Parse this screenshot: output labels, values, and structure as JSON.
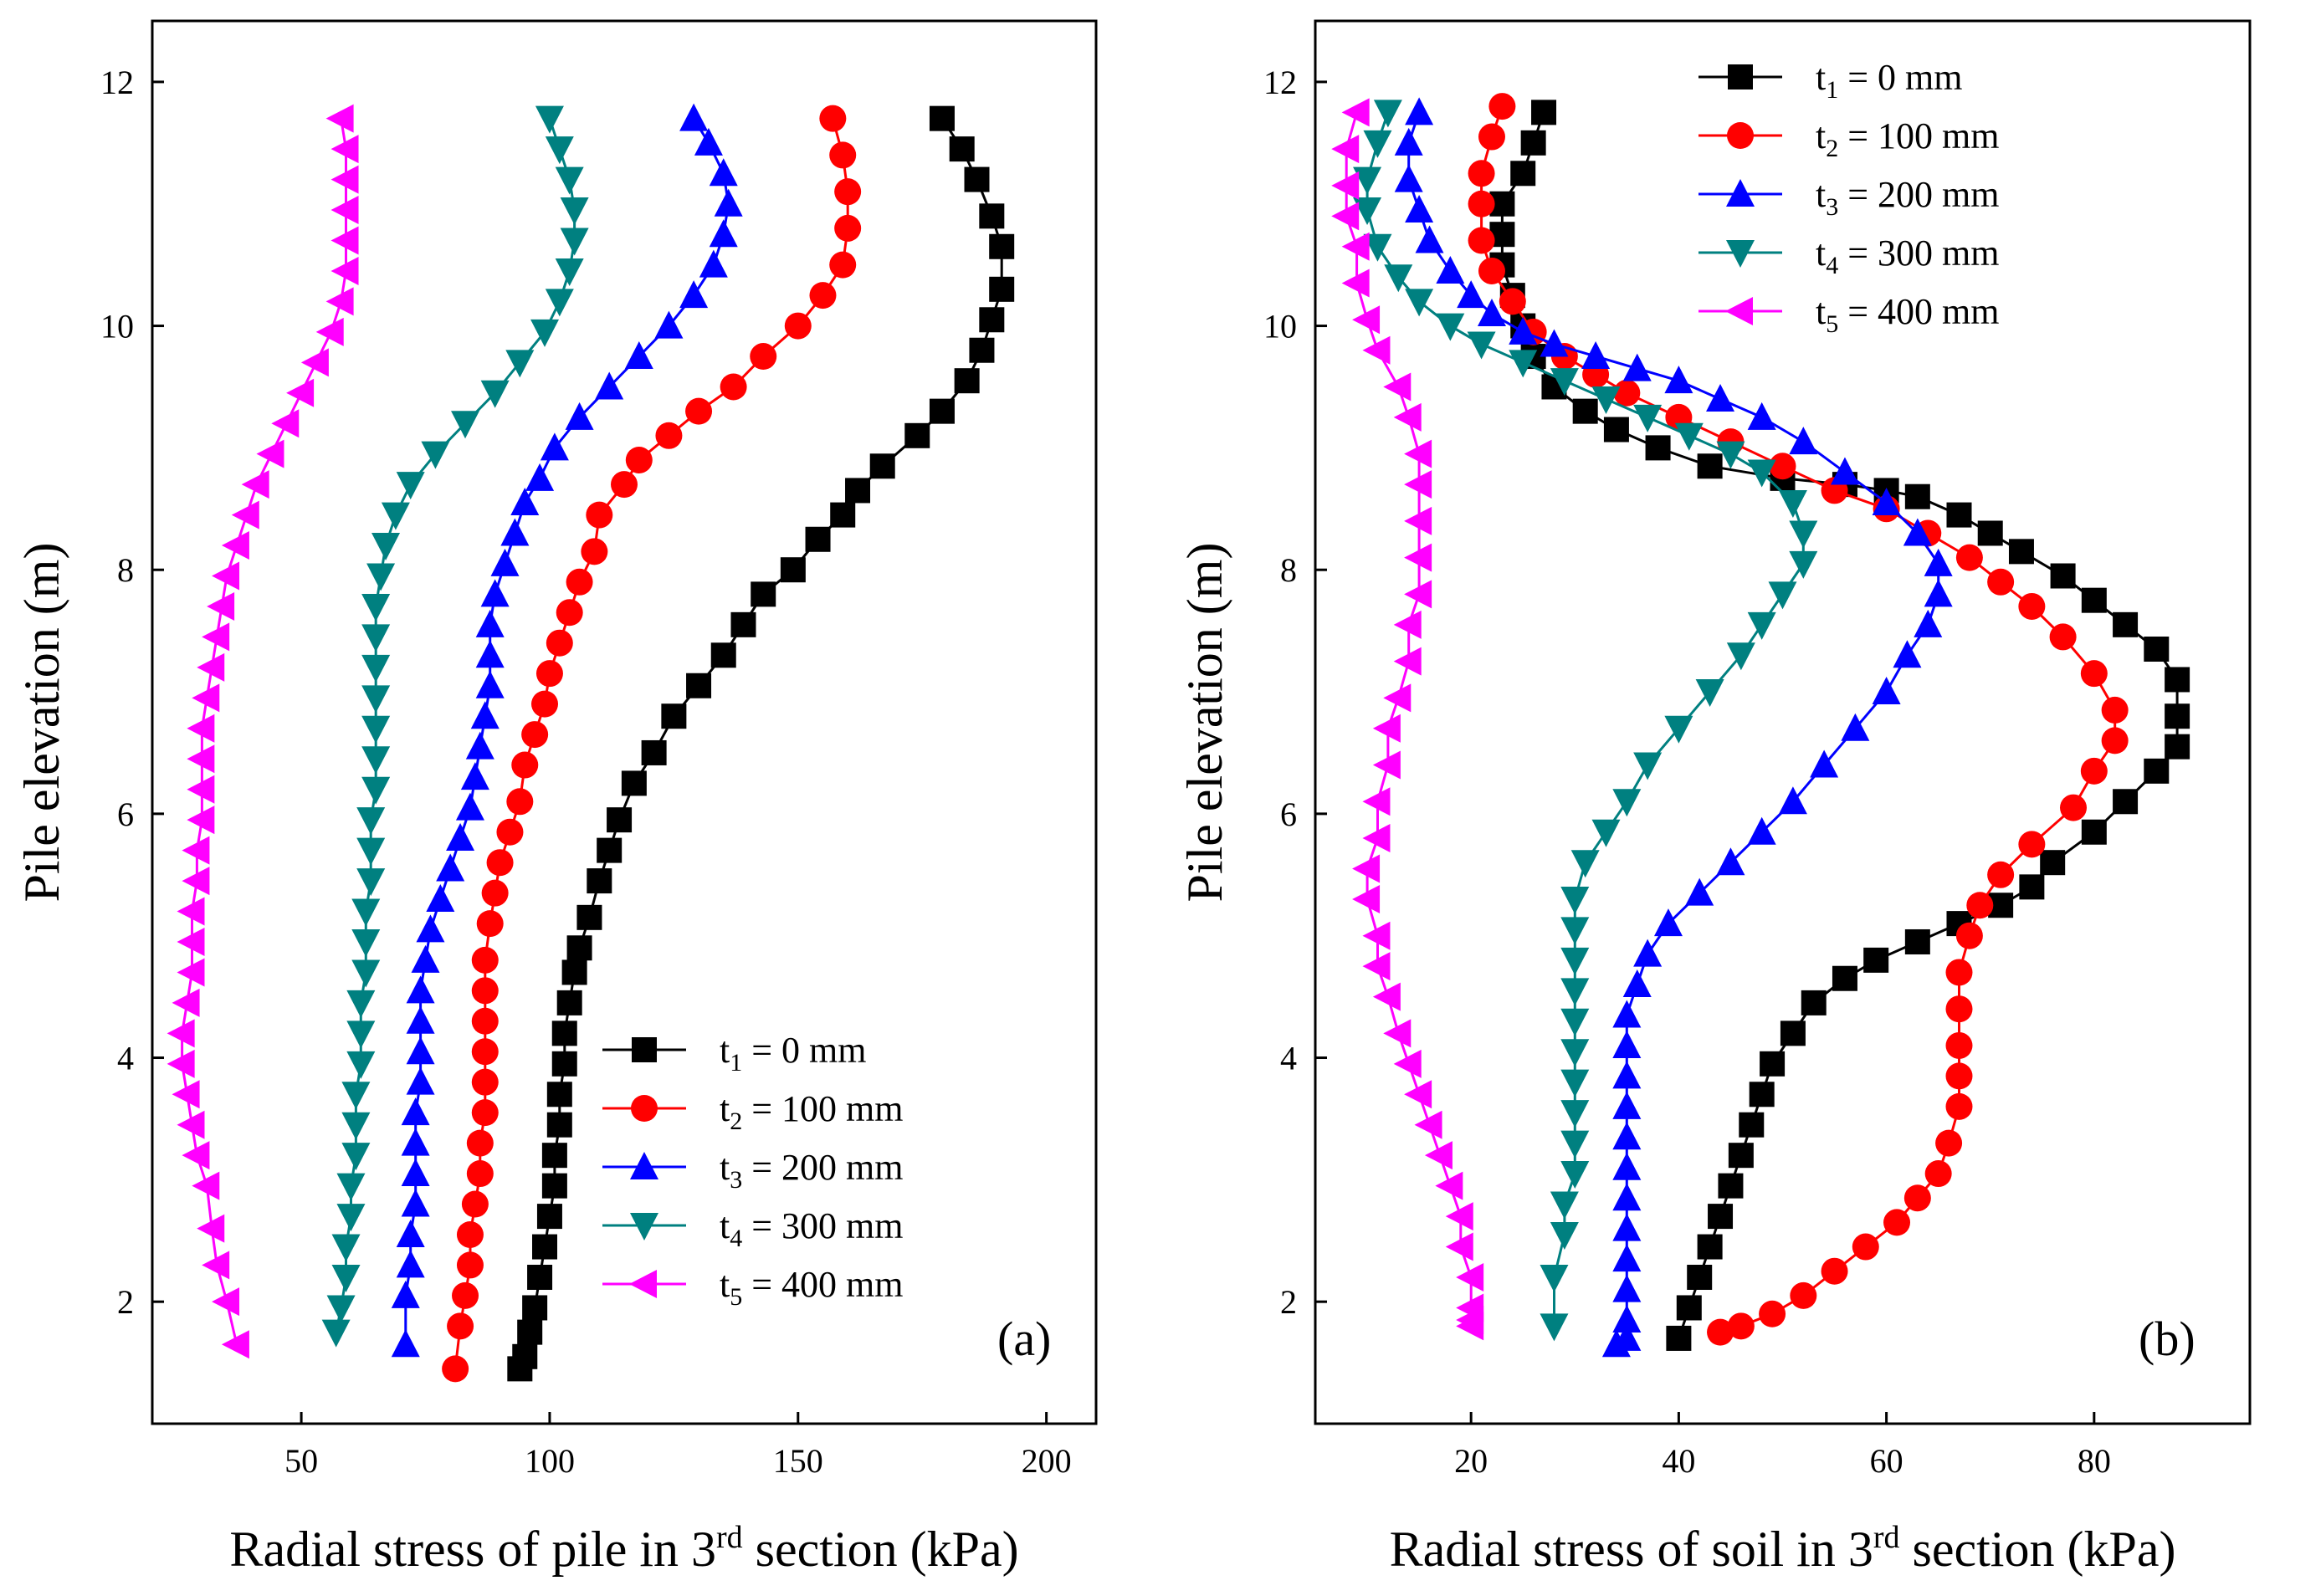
{
  "chart_data": [
    {
      "id": "a",
      "type": "line",
      "panel_label": "(a)",
      "xlabel_pre": "Radial stress of pile in 3",
      "xlabel_sup": "rd",
      "xlabel_post": " section (kPa)",
      "ylabel": "Pile elevation (m)",
      "xlim": [
        20,
        210
      ],
      "ylim": [
        1,
        12.5
      ],
      "xticks": [
        50,
        100,
        150,
        200
      ],
      "yticks": [
        2,
        4,
        6,
        8,
        10,
        12
      ],
      "legend_position": "bottom-right",
      "series": [
        {
          "name": "t1 = 0 mm",
          "sub": "1",
          "label_rest": " = 0 mm",
          "color": "#000000",
          "marker": "square",
          "x": [
            179,
            183,
            186,
            189,
            191,
            191,
            189,
            187,
            184,
            179,
            174,
            167,
            162,
            159,
            154,
            149,
            143,
            139,
            135,
            130,
            125,
            121,
            117,
            114,
            112,
            110,
            108,
            106,
            105,
            104,
            103,
            103,
            102,
            102,
            101,
            101,
            100,
            99,
            98,
            97,
            96,
            95,
            94
          ],
          "y": [
            11.7,
            11.45,
            11.2,
            10.9,
            10.65,
            10.3,
            10.05,
            9.8,
            9.55,
            9.3,
            9.1,
            8.85,
            8.65,
            8.45,
            8.25,
            8.0,
            7.8,
            7.55,
            7.3,
            7.05,
            6.8,
            6.5,
            6.25,
            5.95,
            5.7,
            5.45,
            5.15,
            4.9,
            4.7,
            4.45,
            4.2,
            3.95,
            3.7,
            3.45,
            3.2,
            2.95,
            2.7,
            2.45,
            2.2,
            1.95,
            1.75,
            1.55,
            1.45
          ]
        },
        {
          "name": "t2 = 100 mm",
          "sub": "2",
          "label_rest": " = 100 mm",
          "color": "#ff0000",
          "marker": "circle",
          "x": [
            157,
            159,
            160,
            160,
            159,
            155,
            150,
            143,
            137,
            130,
            124,
            118,
            115,
            110,
            109,
            106,
            104,
            102,
            100,
            99,
            97,
            95,
            94,
            92,
            90,
            89,
            88,
            87,
            87,
            87,
            87,
            87,
            87,
            86,
            86,
            85,
            84,
            84,
            83,
            82,
            81
          ],
          "y": [
            11.7,
            11.4,
            11.1,
            10.8,
            10.5,
            10.25,
            10.0,
            9.75,
            9.5,
            9.3,
            9.1,
            8.9,
            8.7,
            8.45,
            8.15,
            7.9,
            7.65,
            7.4,
            7.15,
            6.9,
            6.65,
            6.4,
            6.1,
            5.85,
            5.6,
            5.35,
            5.1,
            4.8,
            4.55,
            4.3,
            4.05,
            3.8,
            3.55,
            3.3,
            3.05,
            2.8,
            2.55,
            2.3,
            2.05,
            1.8,
            1.45
          ]
        },
        {
          "name": "t3 = 200 mm",
          "sub": "3",
          "label_rest": " = 200 mm",
          "color": "#0000ff",
          "marker": "triangle-up",
          "x": [
            129,
            132,
            135,
            136,
            135,
            133,
            129,
            124,
            118,
            112,
            106,
            101,
            98,
            95,
            93,
            91,
            89,
            88,
            88,
            88,
            87,
            86,
            85,
            84,
            82,
            80,
            78,
            76,
            75,
            74,
            74,
            74,
            74,
            73,
            73,
            73,
            73,
            72,
            72,
            71,
            71
          ],
          "y": [
            11.7,
            11.5,
            11.25,
            11.0,
            10.75,
            10.5,
            10.25,
            10.0,
            9.75,
            9.5,
            9.25,
            9.0,
            8.75,
            8.55,
            8.3,
            8.05,
            7.8,
            7.55,
            7.3,
            7.05,
            6.8,
            6.55,
            6.3,
            6.05,
            5.8,
            5.55,
            5.3,
            5.05,
            4.8,
            4.55,
            4.3,
            4.05,
            3.8,
            3.55,
            3.3,
            3.05,
            2.8,
            2.55,
            2.3,
            2.05,
            1.65
          ]
        },
        {
          "name": "t4 = 300 mm",
          "sub": "4",
          "label_rest": " = 300 mm",
          "color": "#008080",
          "marker": "triangle-down",
          "x": [
            100,
            102,
            104,
            105,
            105,
            104,
            102,
            99,
            94,
            89,
            83,
            77,
            72,
            69,
            67,
            66,
            65,
            65,
            65,
            65,
            65,
            65,
            65,
            64,
            64,
            64,
            63,
            63,
            63,
            62,
            62,
            62,
            61,
            61,
            61,
            60,
            60,
            59,
            59,
            58,
            57
          ],
          "y": [
            11.7,
            11.45,
            11.2,
            10.95,
            10.7,
            10.45,
            10.2,
            9.95,
            9.7,
            9.45,
            9.2,
            8.95,
            8.7,
            8.45,
            8.2,
            7.95,
            7.7,
            7.45,
            7.2,
            6.95,
            6.7,
            6.45,
            6.2,
            5.95,
            5.7,
            5.45,
            5.2,
            4.95,
            4.7,
            4.45,
            4.2,
            3.95,
            3.7,
            3.45,
            3.2,
            2.95,
            2.7,
            2.45,
            2.2,
            1.95,
            1.75
          ]
        },
        {
          "name": "t5 = 400 mm",
          "sub": "5",
          "label_rest": " = 400 mm",
          "color": "#ff00ff",
          "marker": "triangle-left",
          "x": [
            58,
            59,
            59,
            59,
            59,
            59,
            58,
            56,
            53,
            50,
            47,
            44,
            41,
            39,
            37,
            35,
            34,
            33,
            32,
            31,
            30,
            30,
            30,
            30,
            29,
            29,
            28,
            28,
            28,
            27,
            26,
            26,
            27,
            28,
            29,
            31,
            32,
            33,
            35,
            37
          ],
          "y": [
            11.7,
            11.45,
            11.2,
            10.95,
            10.7,
            10.45,
            10.2,
            9.95,
            9.7,
            9.45,
            9.2,
            8.95,
            8.7,
            8.45,
            8.2,
            7.95,
            7.7,
            7.45,
            7.2,
            6.95,
            6.7,
            6.45,
            6.2,
            5.95,
            5.7,
            5.45,
            5.2,
            4.95,
            4.7,
            4.45,
            4.2,
            3.95,
            3.7,
            3.45,
            3.2,
            2.95,
            2.6,
            2.3,
            2.0,
            1.65
          ]
        }
      ]
    },
    {
      "id": "b",
      "type": "line",
      "panel_label": "(b)",
      "xlabel_pre": "Radial stress of soil in 3",
      "xlabel_sup": "rd",
      "xlabel_post": " section (kPa)",
      "ylabel": "Pile elevation (m)",
      "xlim": [
        5,
        95
      ],
      "ylim": [
        1,
        12.5
      ],
      "xticks": [
        20,
        40,
        60,
        80
      ],
      "yticks": [
        2,
        4,
        6,
        8,
        10,
        12
      ],
      "legend_position": "top-right",
      "series": [
        {
          "name": "t1 = 0 mm",
          "sub": "1",
          "label_rest": " = 0 mm",
          "color": "#000000",
          "marker": "square",
          "x": [
            27,
            26,
            25,
            23,
            23,
            23,
            24,
            25,
            26,
            28,
            31,
            34,
            38,
            43,
            50,
            56,
            60,
            63,
            67,
            70,
            73,
            77,
            80,
            83,
            86,
            88,
            88,
            88,
            86,
            83,
            80,
            76,
            74,
            71,
            67,
            63,
            59,
            56,
            53,
            51,
            49,
            48,
            47,
            46,
            45,
            44,
            43,
            42,
            41,
            40
          ],
          "y": [
            11.75,
            11.5,
            11.25,
            11.0,
            10.75,
            10.5,
            10.25,
            10.0,
            9.75,
            9.5,
            9.3,
            9.15,
            9.0,
            8.85,
            8.75,
            8.7,
            8.65,
            8.6,
            8.45,
            8.3,
            8.15,
            7.95,
            7.75,
            7.55,
            7.35,
            7.1,
            6.8,
            6.55,
            6.35,
            6.1,
            5.85,
            5.6,
            5.4,
            5.25,
            5.1,
            4.95,
            4.8,
            4.65,
            4.45,
            4.2,
            3.95,
            3.7,
            3.45,
            3.2,
            2.95,
            2.7,
            2.45,
            2.2,
            1.95,
            1.7
          ]
        },
        {
          "name": "t2 = 100 mm",
          "sub": "2",
          "label_rest": " = 100 mm",
          "color": "#ff0000",
          "marker": "circle",
          "x": [
            23,
            22,
            21,
            21,
            21,
            22,
            24,
            26,
            29,
            32,
            35,
            40,
            45,
            50,
            55,
            60,
            64,
            68,
            71,
            74,
            77,
            80,
            82,
            82,
            80,
            78,
            74,
            71,
            69,
            68,
            67,
            67,
            67,
            67,
            67,
            66,
            65,
            63,
            61,
            58,
            55,
            52,
            49,
            46,
            44
          ],
          "y": [
            11.8,
            11.55,
            11.25,
            11.0,
            10.7,
            10.45,
            10.2,
            9.95,
            9.75,
            9.6,
            9.45,
            9.25,
            9.05,
            8.85,
            8.65,
            8.5,
            8.3,
            8.1,
            7.9,
            7.7,
            7.45,
            7.15,
            6.85,
            6.6,
            6.35,
            6.05,
            5.75,
            5.5,
            5.25,
            5.0,
            4.7,
            4.4,
            4.1,
            3.85,
            3.6,
            3.3,
            3.05,
            2.85,
            2.65,
            2.45,
            2.25,
            2.05,
            1.9,
            1.8,
            1.75
          ]
        },
        {
          "name": "t3 = 200 mm",
          "sub": "3",
          "label_rest": " = 200 mm",
          "color": "#0000ff",
          "marker": "triangle-up",
          "x": [
            15,
            14,
            14,
            15,
            16,
            18,
            20,
            22,
            25,
            28,
            32,
            36,
            40,
            44,
            48,
            52,
            56,
            60,
            63,
            65,
            65,
            64,
            62,
            60,
            57,
            54,
            51,
            48,
            45,
            42,
            39,
            37,
            36,
            35,
            35,
            35,
            35,
            35,
            35,
            35,
            35,
            35,
            35,
            35,
            35,
            34
          ],
          "y": [
            11.75,
            11.5,
            11.2,
            10.95,
            10.7,
            10.45,
            10.25,
            10.1,
            9.95,
            9.85,
            9.75,
            9.65,
            9.55,
            9.4,
            9.25,
            9.05,
            8.8,
            8.55,
            8.3,
            8.05,
            7.8,
            7.55,
            7.3,
            7.0,
            6.7,
            6.4,
            6.1,
            5.85,
            5.6,
            5.35,
            5.1,
            4.85,
            4.6,
            4.35,
            4.1,
            3.85,
            3.6,
            3.35,
            3.1,
            2.85,
            2.6,
            2.35,
            2.1,
            1.85,
            1.7,
            1.65
          ]
        },
        {
          "name": "t4 = 300 mm",
          "sub": "4",
          "label_rest": " = 300 mm",
          "color": "#008080",
          "marker": "triangle-down",
          "x": [
            12,
            11,
            10,
            10,
            11,
            13,
            15,
            18,
            21,
            25,
            29,
            33,
            37,
            41,
            45,
            48,
            51,
            52,
            52,
            50,
            48,
            46,
            43,
            40,
            37,
            35,
            33,
            31,
            30,
            30,
            30,
            30,
            30,
            30,
            30,
            30,
            30,
            30,
            29,
            29,
            28,
            28
          ],
          "y": [
            11.75,
            11.5,
            11.2,
            10.95,
            10.65,
            10.4,
            10.2,
            10.0,
            9.85,
            9.7,
            9.55,
            9.4,
            9.25,
            9.1,
            8.95,
            8.8,
            8.55,
            8.3,
            8.05,
            7.8,
            7.55,
            7.3,
            7.0,
            6.7,
            6.4,
            6.1,
            5.85,
            5.6,
            5.3,
            5.05,
            4.8,
            4.55,
            4.3,
            4.05,
            3.8,
            3.55,
            3.3,
            3.05,
            2.8,
            2.55,
            2.2,
            1.8
          ]
        },
        {
          "name": "t5 = 400 mm",
          "sub": "5",
          "label_rest": " = 400 mm",
          "color": "#ff00ff",
          "marker": "triangle-left",
          "x": [
            9,
            8,
            8,
            8,
            9,
            9,
            10,
            11,
            13,
            14,
            15,
            15,
            15,
            15,
            15,
            14,
            14,
            13,
            12,
            12,
            11,
            11,
            10,
            10,
            11,
            11,
            12,
            13,
            14,
            15,
            16,
            17,
            18,
            19,
            19,
            20,
            20,
            20,
            20
          ],
          "y": [
            11.75,
            11.45,
            11.15,
            10.9,
            10.65,
            10.35,
            10.05,
            9.8,
            9.5,
            9.25,
            8.95,
            8.7,
            8.4,
            8.1,
            7.8,
            7.55,
            7.25,
            6.95,
            6.7,
            6.4,
            6.1,
            5.8,
            5.55,
            5.3,
            5.0,
            4.75,
            4.5,
            4.2,
            3.95,
            3.7,
            3.45,
            3.2,
            2.95,
            2.7,
            2.45,
            2.2,
            1.95,
            1.85,
            1.8
          ]
        }
      ]
    }
  ]
}
